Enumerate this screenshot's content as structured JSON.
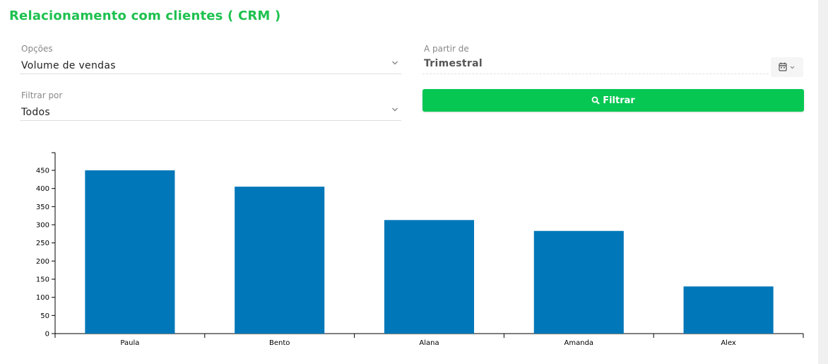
{
  "header": {
    "title": "Relacionamento com clientes ( CRM )"
  },
  "filters": {
    "opcoes": {
      "label": "Opções",
      "value": "Volume de vendas"
    },
    "filtrar_por": {
      "label": "Filtrar por",
      "value": "Todos"
    },
    "a_partir_de": {
      "label": "A partir de",
      "value": "Trimestral"
    },
    "filter_button_label": "Filtrar"
  },
  "colors": {
    "accent": "#06c752",
    "title": "#1ec14f",
    "bar": "#0077b8"
  },
  "icons": {
    "filter_button": "search-icon",
    "date_button": "calendar-icon",
    "dropdown": "chevron-down-icon"
  },
  "chart_data": {
    "type": "bar",
    "categories": [
      "Paula",
      "Bento",
      "Alana",
      "Amanda",
      "Alex"
    ],
    "values": [
      450,
      405,
      313,
      283,
      130
    ],
    "ylim": [
      0,
      500
    ],
    "yticks": [
      0,
      50,
      100,
      150,
      200,
      250,
      300,
      350,
      400,
      450
    ],
    "title": "",
    "xlabel": "",
    "ylabel": "",
    "grid": false
  }
}
